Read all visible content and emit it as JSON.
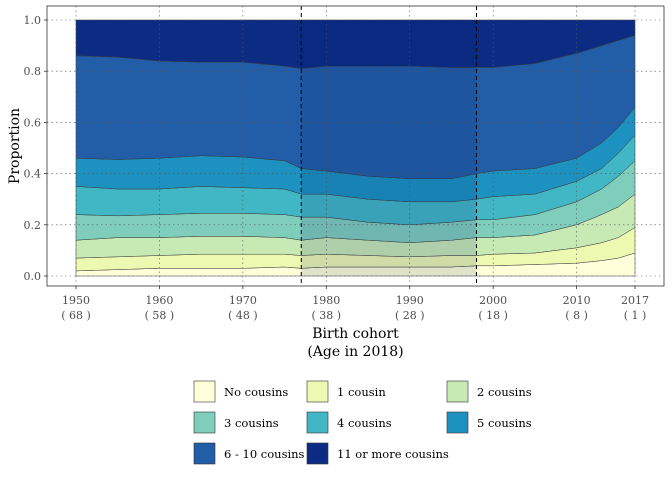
{
  "chart_data": {
    "type": "area",
    "stacked": true,
    "xlabel": "Birth cohort",
    "xlabel2": "(Age in 2018)",
    "ylabel": "Proportion",
    "xlim": [
      1950,
      2017
    ],
    "ylim": [
      0,
      1
    ],
    "x_ticks": [
      {
        "value": 1950,
        "label": "1950",
        "age": "( 68 )"
      },
      {
        "value": 1960,
        "label": "1960",
        "age": "( 58 )"
      },
      {
        "value": 1970,
        "label": "1970",
        "age": "( 48 )"
      },
      {
        "value": 1980,
        "label": "1980",
        "age": "( 38 )"
      },
      {
        "value": 1990,
        "label": "1990",
        "age": "( 28 )"
      },
      {
        "value": 2000,
        "label": "2000",
        "age": "( 18 )"
      },
      {
        "value": 2010,
        "label": "2010",
        "age": "( 8 )"
      },
      {
        "value": 2017,
        "label": "2017",
        "age": "( 1 )"
      }
    ],
    "y_ticks": [
      "0.0",
      "0.2",
      "0.4",
      "0.6",
      "0.8",
      "1.0"
    ],
    "highlight_period": [
      1977,
      1998
    ],
    "grid": true,
    "legend_position": "bottom",
    "x": [
      1950,
      1955,
      1960,
      1965,
      1970,
      1975,
      1977,
      1980,
      1985,
      1990,
      1995,
      1998,
      2000,
      2005,
      2010,
      2013,
      2015,
      2017
    ],
    "cumulative": [
      {
        "name": "No cousins",
        "color": "#ffffd9",
        "values": [
          0.02,
          0.025,
          0.03,
          0.03,
          0.03,
          0.035,
          0.03,
          0.035,
          0.035,
          0.035,
          0.035,
          0.04,
          0.04,
          0.045,
          0.05,
          0.06,
          0.07,
          0.09
        ]
      },
      {
        "name": "1 cousin",
        "color": "#edf8b1",
        "values": [
          0.07,
          0.075,
          0.08,
          0.085,
          0.085,
          0.085,
          0.08,
          0.085,
          0.08,
          0.075,
          0.08,
          0.08,
          0.085,
          0.09,
          0.11,
          0.13,
          0.15,
          0.19
        ]
      },
      {
        "name": "2 cousins",
        "color": "#c7e9b4",
        "values": [
          0.14,
          0.15,
          0.15,
          0.155,
          0.155,
          0.15,
          0.14,
          0.15,
          0.14,
          0.13,
          0.14,
          0.15,
          0.15,
          0.16,
          0.2,
          0.24,
          0.27,
          0.32
        ]
      },
      {
        "name": "3 cousins",
        "color": "#7fcdbb",
        "values": [
          0.24,
          0.235,
          0.24,
          0.245,
          0.245,
          0.24,
          0.23,
          0.23,
          0.21,
          0.2,
          0.21,
          0.22,
          0.22,
          0.24,
          0.29,
          0.34,
          0.39,
          0.45
        ]
      },
      {
        "name": "4 cousins",
        "color": "#41b6c4",
        "values": [
          0.35,
          0.34,
          0.34,
          0.35,
          0.345,
          0.34,
          0.32,
          0.32,
          0.3,
          0.29,
          0.29,
          0.3,
          0.31,
          0.32,
          0.37,
          0.42,
          0.48,
          0.55
        ]
      },
      {
        "name": "5 cousins",
        "color": "#1d91c0",
        "values": [
          0.46,
          0.455,
          0.46,
          0.47,
          0.465,
          0.45,
          0.42,
          0.41,
          0.39,
          0.38,
          0.38,
          0.4,
          0.41,
          0.42,
          0.46,
          0.52,
          0.58,
          0.66
        ]
      },
      {
        "name": "6 - 10 cousins",
        "color": "#225ea8",
        "values": [
          0.86,
          0.855,
          0.84,
          0.835,
          0.835,
          0.82,
          0.81,
          0.82,
          0.82,
          0.82,
          0.815,
          0.815,
          0.815,
          0.83,
          0.87,
          0.9,
          0.92,
          0.94
        ]
      },
      {
        "name": "11 or more cousins",
        "color": "#0c2c84",
        "values": [
          1,
          1,
          1,
          1,
          1,
          1,
          1,
          1,
          1,
          1,
          1,
          1,
          1,
          1,
          1,
          1,
          1,
          1
        ]
      }
    ]
  }
}
